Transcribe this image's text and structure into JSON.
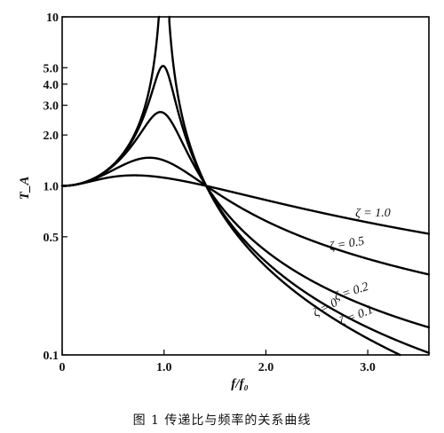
{
  "chart_data": {
    "type": "line",
    "caption": "图 1   传递比与频率的关系曲线",
    "xlabel": "f/f₀",
    "ylabel": "T_A",
    "xlim": [
      0,
      3.6
    ],
    "ylim": [
      0.1,
      10
    ],
    "yscale": "log",
    "grid": false,
    "x_ticks": [
      {
        "value": 0,
        "label": "0"
      },
      {
        "value": 1,
        "label": "1.0"
      },
      {
        "value": 2,
        "label": "2.0"
      },
      {
        "value": 3,
        "label": "3.0"
      }
    ],
    "y_ticks": [
      {
        "value": 0.1,
        "label": "0.1"
      },
      {
        "value": 0.5,
        "label": "0.5"
      },
      {
        "value": 1,
        "label": "1.0"
      },
      {
        "value": 2,
        "label": "2.0"
      },
      {
        "value": 3,
        "label": "3.0"
      },
      {
        "value": 4,
        "label": "4.0"
      },
      {
        "value": 5,
        "label": "5.0"
      },
      {
        "value": 10,
        "label": "10"
      }
    ],
    "series": [
      {
        "name": "ζ = 1.0",
        "zeta": 1.0
      },
      {
        "name": "ζ = 0.5",
        "zeta": 0.5
      },
      {
        "name": "ζ = 0.2",
        "zeta": 0.2
      },
      {
        "name": "ζ = 0.1",
        "zeta": 0.1
      },
      {
        "name": "ζ = 0",
        "zeta": 0
      }
    ]
  }
}
